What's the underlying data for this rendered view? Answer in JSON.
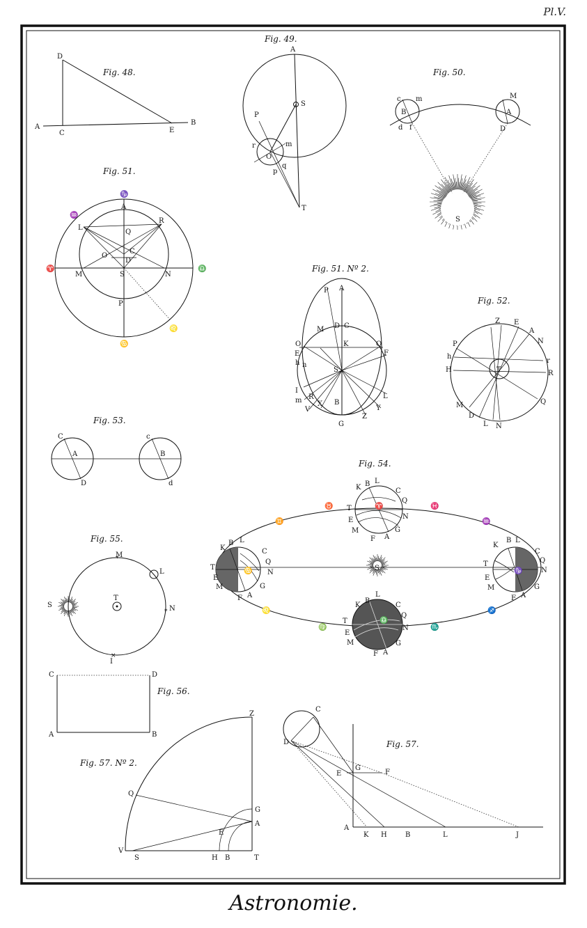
{
  "plate_number": "Pl.V.",
  "title": "Astronomie.",
  "figures": {
    "fig48": {
      "caption": "Fig. 48.",
      "labels": {
        "D": "D",
        "A": "A",
        "C": "C",
        "E": "E",
        "B": "B"
      }
    },
    "fig49": {
      "caption": "Fig. 49.",
      "labels": {
        "A": "A",
        "S": "S",
        "P": "P",
        "r": "r",
        "O": "O",
        "m": "m",
        "p": "p",
        "q": "q",
        "T": "T"
      }
    },
    "fig50": {
      "caption": "Fig. 50.",
      "labels": {
        "c": "c",
        "m": "m",
        "B": "B",
        "d": "d",
        "f": "f",
        "M": "M",
        "A": "A",
        "D": "D",
        "S": "S"
      }
    },
    "fig51": {
      "caption": "Fig. 51.",
      "labels": {
        "capricorn": "♑",
        "aquarius": "♒",
        "aries": "♈",
        "libra": "♎",
        "cancer": "♋",
        "leo": "♌",
        "A": "A",
        "L": "L",
        "Q": "Q",
        "R": "R",
        "O": "O",
        "C": "C",
        "D": "D",
        "M": "M",
        "S": "S",
        "N": "N",
        "P": "P"
      }
    },
    "fig51n2": {
      "caption": "Fig. 51. Nº 2.",
      "labels": {
        "P": "P",
        "A": "A",
        "M": "M",
        "D": "D",
        "C": "C",
        "K": "K",
        "O": "O",
        "Q": "Q",
        "E": "E",
        "F": "F",
        "h": "h",
        "n": "n",
        "S": "S",
        "I": "I",
        "R": "R",
        "m": "m",
        "X": "X",
        "V": "V",
        "B": "B",
        "G": "G",
        "Z": "Z",
        "Y": "Y",
        "L": "L"
      }
    },
    "fig52": {
      "caption": "Fig. 52.",
      "labels": {
        "Z": "Z",
        "E": "E",
        "A": "A",
        "N": "N",
        "P": "P",
        "h": "h",
        "r": "r",
        "H": "H",
        "R": "R",
        "T": "T",
        "M": "M",
        "Q": "Q",
        "D": "D",
        "L": "L",
        "N2": "N"
      }
    },
    "fig53": {
      "caption": "Fig. 53.",
      "labels": {
        "C": "C",
        "A": "A",
        "D": "D",
        "c": "c",
        "B": "B",
        "d": "d"
      }
    },
    "fig54": {
      "caption": "Fig. 54.",
      "labels": {
        "K": "K",
        "B": "B",
        "L": "L",
        "C": "C",
        "Q": "Q",
        "T": "T",
        "E": "E",
        "M": "M",
        "F": "F",
        "A": "A",
        "G": "G",
        "N": "N",
        "S": "S",
        "taurus": "♉",
        "pisces": "♓",
        "gemini": "♊",
        "aquarius": "♒",
        "leo": "♌",
        "virgo": "♍",
        "scorpio": "♏",
        "sagittarius": "♐",
        "aries": "♈",
        "cancer": "♋",
        "capricorn": "♑",
        "libra": "♎"
      }
    },
    "fig55": {
      "caption": "Fig. 55.",
      "labels": {
        "M": "M",
        "L": "L",
        "S": "S",
        "T": "T",
        "N": "N",
        "I": "I"
      }
    },
    "fig56": {
      "caption": "Fig. 56.",
      "labels": {
        "C": "C",
        "D": "D",
        "A": "A",
        "B": "B"
      }
    },
    "fig57n2": {
      "caption": "Fig. 57. Nº 2.",
      "labels": {
        "Z": "Z",
        "Q": "Q",
        "G": "G",
        "A": "A",
        "E": "E",
        "V": "V",
        "S": "S",
        "H": "H",
        "B": "B",
        "T": "T"
      }
    },
    "fig57": {
      "caption": "Fig. 57.",
      "labels": {
        "C": "C",
        "D": "D",
        "E": "E",
        "G": "G",
        "F": "F",
        "A": "A",
        "K": "K",
        "H": "H",
        "B": "B",
        "L": "L",
        "J": "J"
      }
    }
  }
}
